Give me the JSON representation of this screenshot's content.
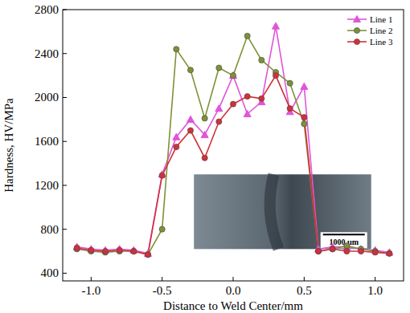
{
  "chart_data": {
    "type": "line",
    "x_label": "Distance to Weld Center/mm",
    "y_label": "Hardness, HV/MPa",
    "annotation": "1000 μm",
    "x": [
      -1.1,
      -1.0,
      -0.9,
      -0.8,
      -0.7,
      -0.6,
      -0.5,
      -0.4,
      -0.3,
      -0.2,
      -0.1,
      0.0,
      0.1,
      0.2,
      0.3,
      0.4,
      0.5,
      0.6,
      0.7,
      0.8,
      0.9,
      1.0,
      1.1
    ],
    "series": [
      {
        "name": "Line 1",
        "color": "#e055d8",
        "marker": "triangle",
        "values": [
          640,
          620,
          610,
          620,
          610,
          580,
          1300,
          1640,
          1800,
          1660,
          1900,
          2200,
          1850,
          1960,
          2650,
          1870,
          2100,
          620,
          640,
          640,
          620,
          610,
          590
        ]
      },
      {
        "name": "Line 2",
        "color": "#7d9236",
        "marker": "circle",
        "values": [
          620,
          600,
          590,
          600,
          600,
          570,
          800,
          2440,
          2250,
          1810,
          2270,
          2200,
          2560,
          2340,
          2230,
          2130,
          1760,
          600,
          620,
          650,
          620,
          600,
          580
        ]
      },
      {
        "name": "Line 3",
        "color": "#d2303a",
        "marker": "circle",
        "values": [
          630,
          610,
          600,
          610,
          600,
          570,
          1290,
          1550,
          1700,
          1450,
          1780,
          1940,
          2010,
          1990,
          2200,
          1900,
          1820,
          600,
          620,
          600,
          600,
          590,
          580
        ]
      }
    ],
    "xlim": [
      -1.2,
      1.2
    ],
    "ylim": [
      330,
      2800
    ],
    "xticks": [
      {
        "value": -1,
        "label": "-1.0"
      },
      {
        "value": -0.5,
        "label": "-0.5"
      },
      {
        "value": 0,
        "label": "0.0"
      },
      {
        "value": 0.5,
        "label": "0.5"
      },
      {
        "value": 1,
        "label": "1.0"
      }
    ],
    "yticks": [
      400,
      800,
      1200,
      1600,
      2000,
      2400,
      2800
    ],
    "grid": false,
    "legend": "upper right"
  }
}
